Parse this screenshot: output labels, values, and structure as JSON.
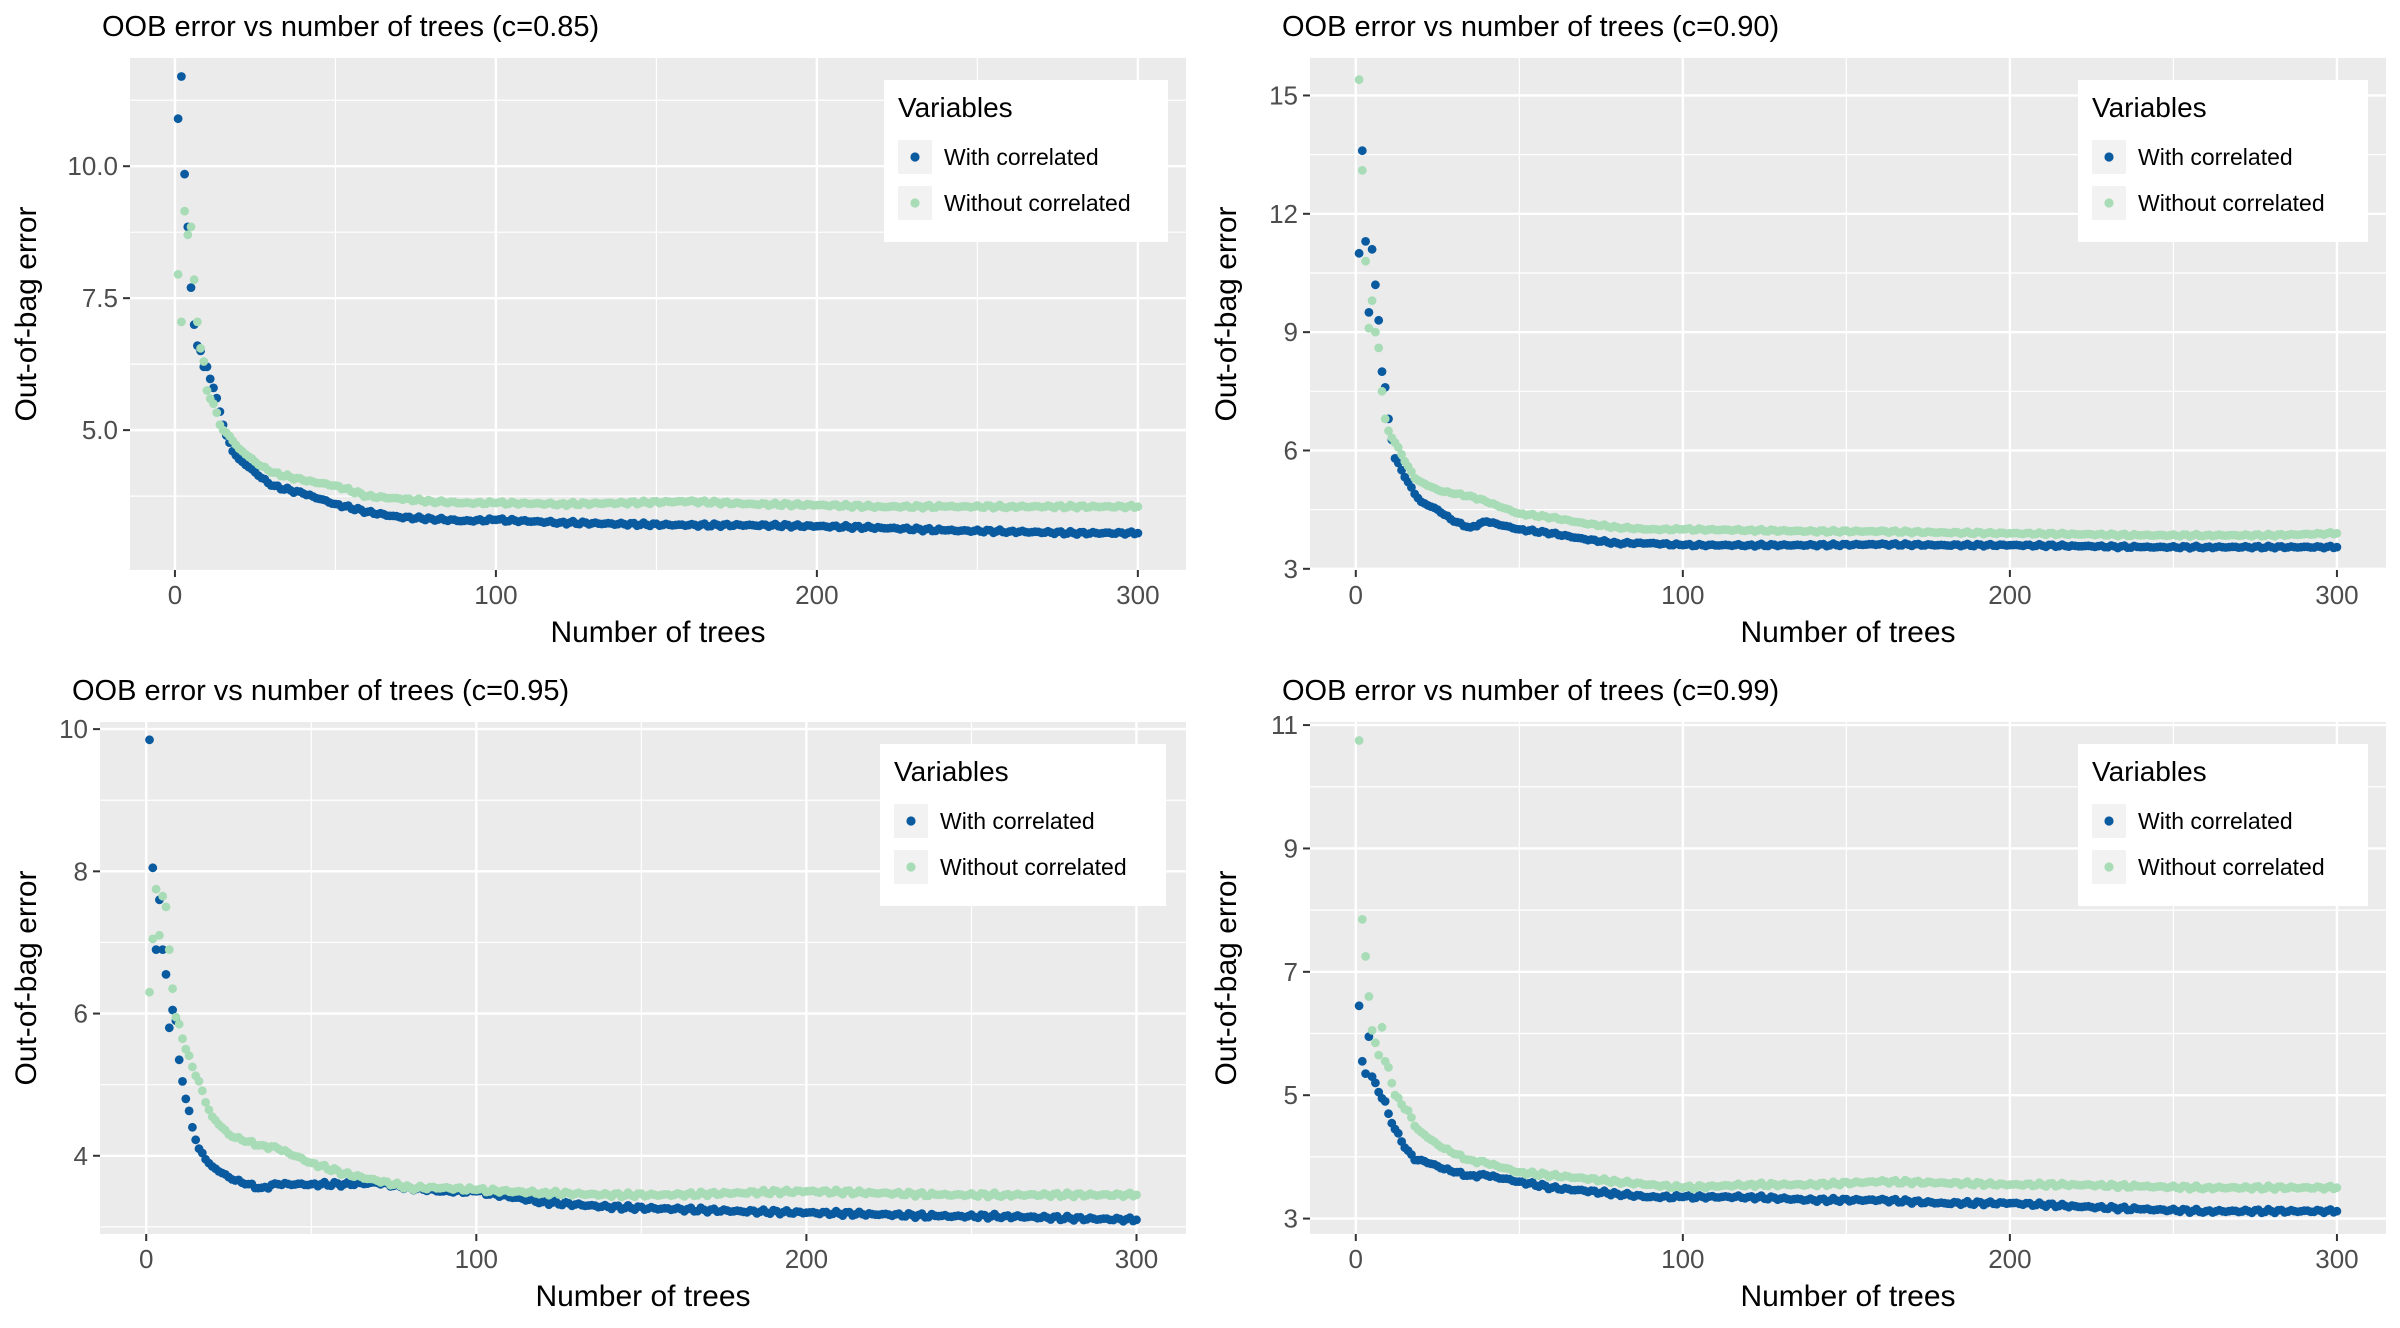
{
  "colors": {
    "with_correlated": "#0a5aa0",
    "without_correlated": "#a8dcb6",
    "panel_bg": "#ebebeb",
    "grid": "#ffffff"
  },
  "chart_data": [
    {
      "type": "scatter",
      "title": "OOB error vs number of trees (c=0.85)",
      "xlabel": "Number of trees",
      "ylabel": "Out-of-bag error",
      "xlim": [
        -14,
        315
      ],
      "ylim": [
        2.35,
        12.05
      ],
      "xticks": [
        0,
        100,
        200,
        300
      ],
      "xtick_labels": [
        "0",
        "100",
        "200",
        "300"
      ],
      "yticks": [
        5.0,
        7.5,
        10.0
      ],
      "ytick_labels": [
        "5.0",
        "7.5",
        "10.0"
      ],
      "grid": true,
      "legend": {
        "title": "Variables",
        "position": "top-right",
        "entries": [
          "With correlated",
          "Without correlated"
        ]
      },
      "series": [
        {
          "name": "With correlated",
          "x": [
            1,
            2,
            3,
            4,
            5,
            6,
            7,
            8,
            9,
            10,
            12,
            14,
            16,
            18,
            20,
            25,
            30,
            40,
            50,
            60,
            70,
            80,
            90,
            100,
            120,
            140,
            160,
            180,
            200,
            220,
            240,
            260,
            280,
            300
          ],
          "y": [
            10.9,
            11.7,
            9.85,
            8.85,
            7.7,
            7.0,
            6.6,
            6.5,
            6.2,
            6.2,
            5.8,
            5.35,
            4.9,
            4.6,
            4.45,
            4.2,
            3.95,
            3.8,
            3.6,
            3.45,
            3.35,
            3.32,
            3.28,
            3.3,
            3.25,
            3.22,
            3.2,
            3.2,
            3.18,
            3.15,
            3.1,
            3.08,
            3.05,
            3.05
          ]
        },
        {
          "name": "Without correlated",
          "x": [
            1,
            2,
            3,
            4,
            5,
            6,
            7,
            8,
            9,
            10,
            12,
            14,
            16,
            18,
            20,
            25,
            30,
            40,
            50,
            60,
            70,
            80,
            90,
            100,
            120,
            140,
            160,
            180,
            200,
            220,
            240,
            260,
            280,
            300
          ],
          "y": [
            7.95,
            7.05,
            9.15,
            8.7,
            8.85,
            7.85,
            7.05,
            6.55,
            6.3,
            5.75,
            5.5,
            5.1,
            4.95,
            4.8,
            4.65,
            4.4,
            4.2,
            4.05,
            3.95,
            3.75,
            3.7,
            3.65,
            3.62,
            3.62,
            3.6,
            3.62,
            3.65,
            3.6,
            3.58,
            3.55,
            3.55,
            3.55,
            3.55,
            3.55
          ]
        }
      ]
    },
    {
      "type": "scatter",
      "title": "OOB error vs number of trees (c=0.90)",
      "xlabel": "Number of trees",
      "ylabel": "Out-of-bag error",
      "xlim": [
        -14,
        315
      ],
      "ylim": [
        2.97,
        15.95
      ],
      "xticks": [
        0,
        100,
        200,
        300
      ],
      "xtick_labels": [
        "0",
        "100",
        "200",
        "300"
      ],
      "yticks": [
        3,
        6,
        9,
        12,
        15
      ],
      "ytick_labels": [
        "3",
        "6",
        "9",
        "12",
        "15"
      ],
      "grid": true,
      "legend": {
        "title": "Variables",
        "position": "top-right",
        "entries": [
          "With correlated",
          "Without correlated"
        ]
      },
      "series": [
        {
          "name": "With correlated",
          "x": [
            1,
            2,
            3,
            4,
            5,
            6,
            7,
            8,
            9,
            10,
            12,
            14,
            16,
            18,
            20,
            25,
            30,
            35,
            40,
            50,
            60,
            70,
            80,
            90,
            100,
            120,
            140,
            160,
            180,
            200,
            220,
            240,
            260,
            280,
            300
          ],
          "y": [
            11.0,
            13.6,
            11.3,
            9.5,
            11.1,
            10.2,
            9.3,
            8.0,
            7.6,
            6.8,
            5.8,
            5.5,
            5.2,
            4.9,
            4.7,
            4.5,
            4.2,
            4.05,
            4.2,
            4.0,
            3.9,
            3.75,
            3.65,
            3.65,
            3.6,
            3.6,
            3.6,
            3.62,
            3.6,
            3.6,
            3.58,
            3.55,
            3.55,
            3.55,
            3.55
          ]
        },
        {
          "name": "Without correlated",
          "x": [
            1,
            2,
            3,
            4,
            5,
            6,
            7,
            8,
            9,
            10,
            12,
            14,
            16,
            18,
            20,
            25,
            30,
            35,
            40,
            50,
            60,
            70,
            80,
            90,
            100,
            120,
            140,
            160,
            180,
            200,
            220,
            240,
            260,
            280,
            300
          ],
          "y": [
            15.4,
            13.1,
            10.8,
            9.1,
            9.8,
            9.0,
            8.6,
            7.5,
            6.8,
            6.5,
            6.2,
            5.9,
            5.6,
            5.3,
            5.2,
            5.0,
            4.9,
            4.85,
            4.7,
            4.4,
            4.3,
            4.15,
            4.05,
            4.0,
            4.0,
            3.98,
            3.95,
            3.95,
            3.92,
            3.9,
            3.88,
            3.85,
            3.85,
            3.85,
            3.9
          ]
        }
      ]
    },
    {
      "type": "scatter",
      "title": "OOB error vs number of trees (c=0.95)",
      "xlabel": "Number of trees",
      "ylabel": "Out-of-bag error",
      "xlim": [
        -14,
        315
      ],
      "ylim": [
        2.9,
        10.1
      ],
      "xticks": [
        0,
        100,
        200,
        300
      ],
      "xtick_labels": [
        "0",
        "100",
        "200",
        "300"
      ],
      "yticks": [
        4,
        6,
        8,
        10
      ],
      "ytick_labels": [
        "4",
        "6",
        "8",
        "10"
      ],
      "grid": true,
      "legend": {
        "title": "Variables",
        "position": "top-right",
        "entries": [
          "With correlated",
          "Without correlated"
        ]
      },
      "series": [
        {
          "name": "With correlated",
          "x": [
            1,
            2,
            3,
            4,
            5,
            6,
            7,
            8,
            9,
            10,
            12,
            14,
            16,
            18,
            20,
            25,
            30,
            35,
            40,
            50,
            60,
            70,
            80,
            90,
            100,
            120,
            140,
            160,
            180,
            200,
            220,
            240,
            260,
            280,
            300
          ],
          "y": [
            9.85,
            8.05,
            6.9,
            7.6,
            6.9,
            6.55,
            5.8,
            6.05,
            5.9,
            5.35,
            4.8,
            4.4,
            4.1,
            3.95,
            3.85,
            3.7,
            3.6,
            3.55,
            3.6,
            3.6,
            3.6,
            3.62,
            3.55,
            3.5,
            3.5,
            3.35,
            3.28,
            3.25,
            3.22,
            3.2,
            3.18,
            3.15,
            3.15,
            3.12,
            3.1
          ]
        },
        {
          "name": "Without correlated",
          "x": [
            1,
            2,
            3,
            4,
            5,
            6,
            7,
            8,
            9,
            10,
            12,
            14,
            16,
            18,
            20,
            25,
            30,
            35,
            40,
            50,
            60,
            70,
            80,
            90,
            100,
            120,
            140,
            160,
            180,
            200,
            220,
            240,
            260,
            280,
            300
          ],
          "y": [
            6.3,
            7.05,
            7.75,
            7.1,
            7.65,
            7.5,
            6.9,
            6.35,
            5.95,
            5.85,
            5.5,
            5.25,
            5.05,
            4.75,
            4.55,
            4.3,
            4.2,
            4.15,
            4.1,
            3.9,
            3.75,
            3.65,
            3.55,
            3.55,
            3.52,
            3.48,
            3.45,
            3.45,
            3.48,
            3.5,
            3.48,
            3.45,
            3.45,
            3.45,
            3.45
          ]
        }
      ]
    },
    {
      "type": "scatter",
      "title": "OOB error vs number of trees (c=0.99)",
      "xlabel": "Number of trees",
      "ylabel": "Out-of-bag error",
      "xlim": [
        -14,
        315
      ],
      "ylim": [
        2.75,
        11.05
      ],
      "xticks": [
        0,
        100,
        200,
        300
      ],
      "xtick_labels": [
        "0",
        "100",
        "200",
        "300"
      ],
      "yticks": [
        3,
        5,
        7,
        9,
        11
      ],
      "ytick_labels": [
        "3",
        "5",
        "7",
        "9",
        "11"
      ],
      "grid": true,
      "legend": {
        "title": "Variables",
        "position": "top-right",
        "entries": [
          "With correlated",
          "Without correlated"
        ]
      },
      "series": [
        {
          "name": "With correlated",
          "x": [
            1,
            2,
            3,
            4,
            5,
            6,
            7,
            8,
            9,
            10,
            12,
            14,
            16,
            18,
            20,
            25,
            30,
            35,
            40,
            50,
            60,
            70,
            80,
            90,
            100,
            120,
            140,
            160,
            180,
            200,
            220,
            240,
            260,
            280,
            300
          ],
          "y": [
            6.45,
            5.55,
            5.35,
            5.95,
            5.3,
            5.2,
            5.05,
            4.95,
            4.9,
            4.7,
            4.45,
            4.25,
            4.1,
            3.95,
            3.95,
            3.85,
            3.75,
            3.7,
            3.7,
            3.6,
            3.5,
            3.45,
            3.4,
            3.35,
            3.35,
            3.35,
            3.3,
            3.3,
            3.25,
            3.25,
            3.2,
            3.15,
            3.12,
            3.12,
            3.12
          ]
        },
        {
          "name": "Without correlated",
          "x": [
            1,
            2,
            3,
            4,
            5,
            6,
            7,
            8,
            9,
            10,
            12,
            14,
            16,
            18,
            20,
            25,
            30,
            35,
            40,
            50,
            60,
            70,
            80,
            90,
            100,
            120,
            140,
            160,
            180,
            200,
            220,
            240,
            260,
            280,
            300
          ],
          "y": [
            10.75,
            7.85,
            7.25,
            6.6,
            6.05,
            5.85,
            5.65,
            6.1,
            5.55,
            5.45,
            5.0,
            4.85,
            4.75,
            4.5,
            4.4,
            4.2,
            4.05,
            3.95,
            3.9,
            3.75,
            3.7,
            3.65,
            3.6,
            3.55,
            3.5,
            3.55,
            3.55,
            3.6,
            3.58,
            3.55,
            3.55,
            3.52,
            3.5,
            3.5,
            3.5
          ]
        }
      ]
    }
  ]
}
